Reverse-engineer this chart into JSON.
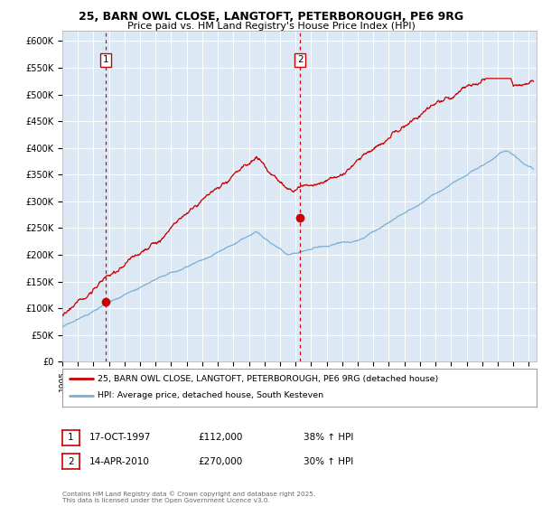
{
  "title_line1": "25, BARN OWL CLOSE, LANGTOFT, PETERBOROUGH, PE6 9RG",
  "title_line2": "Price paid vs. HM Land Registry's House Price Index (HPI)",
  "ylabel_ticks": [
    "£0",
    "£50K",
    "£100K",
    "£150K",
    "£200K",
    "£250K",
    "£300K",
    "£350K",
    "£400K",
    "£450K",
    "£500K",
    "£550K",
    "£600K"
  ],
  "ytick_values": [
    0,
    50000,
    100000,
    150000,
    200000,
    250000,
    300000,
    350000,
    400000,
    450000,
    500000,
    550000,
    600000
  ],
  "xmin": 1995.0,
  "xmax": 2025.5,
  "xticks": [
    1995,
    1996,
    1997,
    1998,
    1999,
    2000,
    2001,
    2002,
    2003,
    2004,
    2005,
    2006,
    2007,
    2008,
    2009,
    2010,
    2011,
    2012,
    2013,
    2014,
    2015,
    2016,
    2017,
    2018,
    2019,
    2020,
    2021,
    2022,
    2023,
    2024,
    2025
  ],
  "purchase1_x": 1997.79,
  "purchase1_y": 112000,
  "purchase1_label": "1",
  "purchase1_date": "17-OCT-1997",
  "purchase1_price": "£112,000",
  "purchase1_hpi": "38% ↑ HPI",
  "purchase2_x": 2010.29,
  "purchase2_y": 270000,
  "purchase2_label": "2",
  "purchase2_date": "14-APR-2010",
  "purchase2_price": "£270,000",
  "purchase2_hpi": "30% ↑ HPI",
  "line_color_property": "#cc0000",
  "line_color_hpi": "#7bafd4",
  "vline_color": "#dd0000",
  "plot_bg_color": "#dce9f5",
  "legend_label_property": "25, BARN OWL CLOSE, LANGTOFT, PETERBOROUGH, PE6 9RG (detached house)",
  "legend_label_hpi": "HPI: Average price, detached house, South Kesteven",
  "footer": "Contains HM Land Registry data © Crown copyright and database right 2025.\nThis data is licensed under the Open Government Licence v3.0."
}
